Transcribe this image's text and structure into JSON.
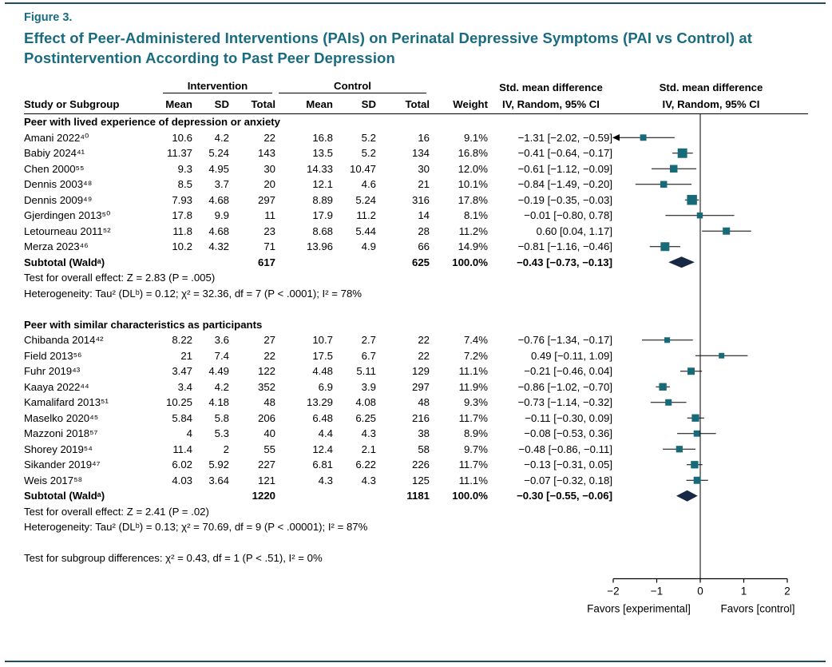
{
  "header": {
    "figure_label": "Figure 3.",
    "title": "Effect of Peer-Administered Interventions (PAIs) on Perinatal Depressive Symptoms (PAI vs Control) at Postintervention According to Past Peer Depression"
  },
  "columns": {
    "study": "Study or Subgroup",
    "intervention": "Intervention",
    "control": "Control",
    "mean": "Mean",
    "sd": "SD",
    "total": "Total",
    "weight": "Weight",
    "smd_line1": "Std. mean difference",
    "smd_line2": "IV, Random, 95% CI"
  },
  "axis": {
    "min": -2,
    "max": 2,
    "tick_values": [
      -2,
      -1,
      0,
      1,
      2
    ],
    "ticks": [
      "−2",
      "−1",
      "0",
      "1",
      "2"
    ],
    "favors_left": "Favors [experimental]",
    "favors_right": "Favors [control]"
  },
  "colors": {
    "accent_teal": "#186b80",
    "marker": "#176a78",
    "diamond": "#182945",
    "frame_rule": "#1d4f63"
  },
  "chart_data": {
    "type": "forest",
    "x_range": [
      -2,
      2
    ],
    "groups": [
      {
        "title": "Peer with lived experience of depression or anxiety",
        "studies": [
          {
            "study": "Amani 2022⁴⁰",
            "i_mean": "10.6",
            "i_sd": "4.2",
            "i_total": "22",
            "c_mean": "16.8",
            "c_sd": "5.2",
            "c_total": "16",
            "weight": "9.1%",
            "smd_text": "−1.31 [−2.02, −0.59]",
            "smd": -1.31,
            "lo": -2.02,
            "hi": -0.59,
            "w": 9.1
          },
          {
            "study": "Babiy 2024⁴¹",
            "i_mean": "11.37",
            "i_sd": "5.24",
            "i_total": "143",
            "c_mean": "13.5",
            "c_sd": "5.2",
            "c_total": "134",
            "weight": "16.8%",
            "smd_text": "−0.41 [−0.64, −0.17]",
            "smd": -0.41,
            "lo": -0.64,
            "hi": -0.17,
            "w": 16.8
          },
          {
            "study": "Chen 2000⁵⁵",
            "i_mean": "9.3",
            "i_sd": "4.95",
            "i_total": "30",
            "c_mean": "14.33",
            "c_sd": "10.47",
            "c_total": "30",
            "weight": "12.0%",
            "smd_text": "−0.61 [−1.12, −0.09]",
            "smd": -0.61,
            "lo": -1.12,
            "hi": -0.09,
            "w": 12.0
          },
          {
            "study": "Dennis 2003⁴⁸",
            "i_mean": "8.5",
            "i_sd": "3.7",
            "i_total": "20",
            "c_mean": "12.1",
            "c_sd": "4.6",
            "c_total": "21",
            "weight": "10.1%",
            "smd_text": "−0.84 [−1.49, −0.20]",
            "smd": -0.84,
            "lo": -1.49,
            "hi": -0.2,
            "w": 10.1
          },
          {
            "study": "Dennis 2009⁴⁹",
            "i_mean": "7.93",
            "i_sd": "4.68",
            "i_total": "297",
            "c_mean": "8.89",
            "c_sd": "5.24",
            "c_total": "316",
            "weight": "17.8%",
            "smd_text": "−0.19 [−0.35, −0.03]",
            "smd": -0.19,
            "lo": -0.35,
            "hi": -0.03,
            "w": 17.8
          },
          {
            "study": "Gjerdingen 2013⁵⁰",
            "i_mean": "17.8",
            "i_sd": "9.9",
            "i_total": "11",
            "c_mean": "17.9",
            "c_sd": "11.2",
            "c_total": "14",
            "weight": "8.1%",
            "smd_text": "−0.01 [−0.80, 0.78]",
            "smd": -0.01,
            "lo": -0.8,
            "hi": 0.78,
            "w": 8.1
          },
          {
            "study": "Letourneau 2011⁵²",
            "i_mean": "11.8",
            "i_sd": "4.68",
            "i_total": "23",
            "c_mean": "8.68",
            "c_sd": "5.44",
            "c_total": "28",
            "weight": "11.2%",
            "smd_text": "0.60 [0.04, 1.17]",
            "smd": 0.6,
            "lo": 0.04,
            "hi": 1.17,
            "w": 11.2
          },
          {
            "study": "Merza 2023⁴⁶",
            "i_mean": "10.2",
            "i_sd": "4.32",
            "i_total": "71",
            "c_mean": "13.96",
            "c_sd": "4.9",
            "c_total": "66",
            "weight": "14.9%",
            "smd_text": "−0.81 [−1.16, −0.46]",
            "smd": -0.81,
            "lo": -1.16,
            "hi": -0.46,
            "w": 14.9
          }
        ],
        "subtotal": {
          "study": "Subtotal (Waldᵃ)",
          "i_total": "617",
          "c_total": "625",
          "weight": "100.0%",
          "smd_text": "−0.43 [−0.73, −0.13]",
          "smd": -0.43,
          "lo": -0.73,
          "hi": -0.13
        },
        "overall_effect": "Test for overall effect: Z = 2.83 (P = .005)",
        "heterogeneity": "Heterogeneity: Tau² (DLᵇ) = 0.12; χ² = 32.36, df = 7 (P < .0001); I² = 78%"
      },
      {
        "title": "Peer with similar characteristics as participants",
        "studies": [
          {
            "study": "Chibanda 2014⁴²",
            "i_mean": "8.22",
            "i_sd": "3.6",
            "i_total": "27",
            "c_mean": "10.7",
            "c_sd": "2.7",
            "c_total": "22",
            "weight": "7.4%",
            "smd_text": "−0.76 [−1.34, −0.17]",
            "smd": -0.76,
            "lo": -1.34,
            "hi": -0.17,
            "w": 7.4
          },
          {
            "study": "Field 2013⁵⁶",
            "i_mean": "21",
            "i_sd": "7.4",
            "i_total": "22",
            "c_mean": "17.5",
            "c_sd": "6.7",
            "c_total": "22",
            "weight": "7.2%",
            "smd_text": "0.49 [−0.11, 1.09]",
            "smd": 0.49,
            "lo": -0.11,
            "hi": 1.09,
            "w": 7.2
          },
          {
            "study": "Fuhr 2019⁴³",
            "i_mean": "3.47",
            "i_sd": "4.49",
            "i_total": "122",
            "c_mean": "4.48",
            "c_sd": "5.11",
            "c_total": "129",
            "weight": "11.1%",
            "smd_text": "−0.21 [−0.46, 0.04]",
            "smd": -0.21,
            "lo": -0.46,
            "hi": 0.04,
            "w": 11.1
          },
          {
            "study": "Kaaya 2022⁴⁴",
            "i_mean": "3.4",
            "i_sd": "4.2",
            "i_total": "352",
            "c_mean": "6.9",
            "c_sd": "3.9",
            "c_total": "297",
            "weight": "11.9%",
            "smd_text": "−0.86 [−1.02, −0.70]",
            "smd": -0.86,
            "lo": -1.02,
            "hi": -0.7,
            "w": 11.9
          },
          {
            "study": "Kamalifard 2013⁵¹",
            "i_mean": "10.25",
            "i_sd": "4.18",
            "i_total": "48",
            "c_mean": "13.29",
            "c_sd": "4.08",
            "c_total": "48",
            "weight": "9.3%",
            "smd_text": "−0.73 [−1.14, −0.32]",
            "smd": -0.73,
            "lo": -1.14,
            "hi": -0.32,
            "w": 9.3
          },
          {
            "study": "Maselko 2020⁴⁵",
            "i_mean": "5.84",
            "i_sd": "5.8",
            "i_total": "206",
            "c_mean": "6.48",
            "c_sd": "6.25",
            "c_total": "216",
            "weight": "11.7%",
            "smd_text": "−0.11 [−0.30, 0.09]",
            "smd": -0.11,
            "lo": -0.3,
            "hi": 0.09,
            "w": 11.7
          },
          {
            "study": "Mazzoni 2018⁵⁷",
            "i_mean": "4",
            "i_sd": "5.3",
            "i_total": "40",
            "c_mean": "4.4",
            "c_sd": "4.3",
            "c_total": "38",
            "weight": "8.9%",
            "smd_text": "−0.08 [−0.53, 0.36]",
            "smd": -0.08,
            "lo": -0.53,
            "hi": 0.36,
            "w": 8.9
          },
          {
            "study": "Shorey 2019⁵⁴",
            "i_mean": "11.4",
            "i_sd": "2",
            "i_total": "55",
            "c_mean": "12.4",
            "c_sd": "2.1",
            "c_total": "58",
            "weight": "9.7%",
            "smd_text": "−0.48 [−0.86, −0.11]",
            "smd": -0.48,
            "lo": -0.86,
            "hi": -0.11,
            "w": 9.7
          },
          {
            "study": "Sikander 2019⁴⁷",
            "i_mean": "6.02",
            "i_sd": "5.92",
            "i_total": "227",
            "c_mean": "6.81",
            "c_sd": "6.22",
            "c_total": "226",
            "weight": "11.7%",
            "smd_text": "−0.13 [−0.31, 0.05]",
            "smd": -0.13,
            "lo": -0.31,
            "hi": 0.05,
            "w": 11.7
          },
          {
            "study": "Weis 2017⁵⁸",
            "i_mean": "4.03",
            "i_sd": "3.64",
            "i_total": "121",
            "c_mean": "4.3",
            "c_sd": "4.3",
            "c_total": "125",
            "weight": "11.1%",
            "smd_text": "−0.07 [−0.32, 0.18]",
            "smd": -0.07,
            "lo": -0.32,
            "hi": 0.18,
            "w": 11.1
          }
        ],
        "subtotal": {
          "study": "Subtotal (Waldᵃ)",
          "i_total": "1220",
          "c_total": "1181",
          "weight": "100.0%",
          "smd_text": "−0.30 [−0.55, −0.06]",
          "smd": -0.3,
          "lo": -0.55,
          "hi": -0.06
        },
        "overall_effect": "Test for overall effect: Z = 2.41 (P = .02)",
        "heterogeneity": "Heterogeneity: Tau² (DLᵇ) = 0.13; χ² = 70.69, df = 9 (P < .00001); I² = 87%"
      }
    ],
    "subgroup_test": "Test for subgroup differences: χ² = 0.43, df = 1 (P < .51), I² = 0%"
  }
}
